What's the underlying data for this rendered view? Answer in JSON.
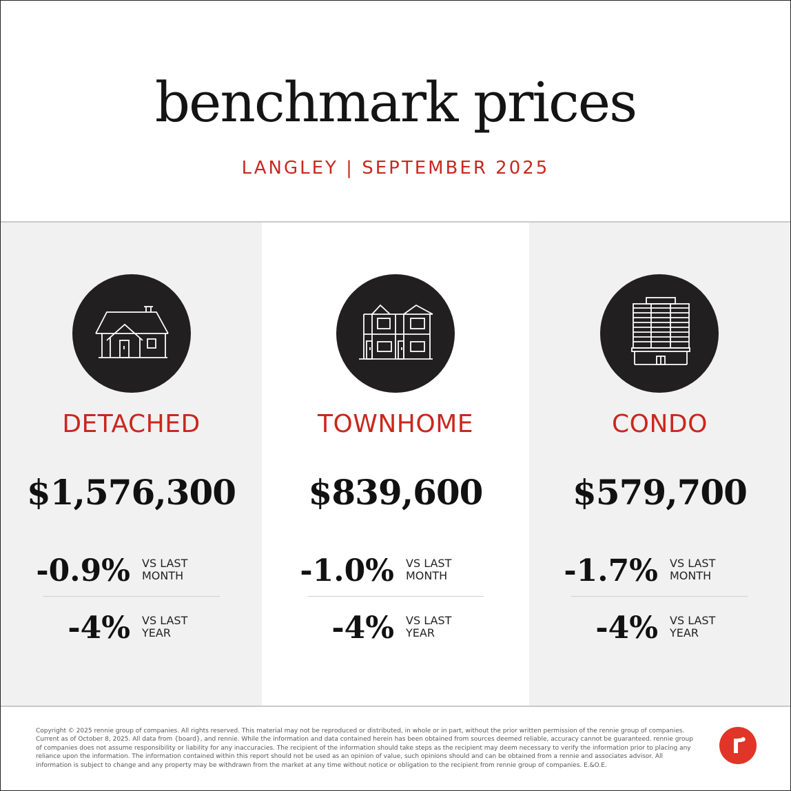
{
  "header": {
    "title": "benchmark prices",
    "subtitle": "LANGLEY | SEPTEMBER 2025"
  },
  "colors": {
    "accent": "#c8281e",
    "icon_circle": "#211f1f",
    "column_shade": "#f1f1f1",
    "logo": "#e03527"
  },
  "columns": [
    {
      "icon": "detached-house-icon",
      "type": "DETACHED",
      "price": "$1,576,300",
      "month_change": "-0.9%",
      "month_label_1": "VS LAST",
      "month_label_2": "MONTH",
      "year_change": "-4%",
      "year_label_1": "VS LAST",
      "year_label_2": "YEAR"
    },
    {
      "icon": "townhome-icon",
      "type": "TOWNHOME",
      "price": "$839,600",
      "month_change": "-1.0%",
      "month_label_1": "VS LAST",
      "month_label_2": "MONTH",
      "year_change": "-4%",
      "year_label_1": "VS LAST",
      "year_label_2": "YEAR"
    },
    {
      "icon": "condo-building-icon",
      "type": "CONDO",
      "price": "$579,700",
      "month_change": "-1.7%",
      "month_label_1": "VS LAST",
      "month_label_2": "MONTH",
      "year_change": "-4%",
      "year_label_1": "VS LAST",
      "year_label_2": "YEAR"
    }
  ],
  "footer": {
    "disclaimer": "Copyright © 2025 rennie group of companies. All rights reserved. This material may not be reproduced or distributed, in whole or in part, without the prior written permission of the rennie group of companies. Current as of October 8, 2025. All data from {board}, and rennie. While the information and data contained herein has been obtained from sources deemed reliable, accuracy cannot be guaranteed. rennie group of companies does not assume responsibility or liability for any inaccuracies. The recipient of the information should take steps as the recipient may deem necessary to verify the information prior to placing any reliance upon the information. The information contained within this report should not be used as an opinion of value, such opinions should and can be obtained from a rennie and associates advisor. All information is subject to change and any property may be withdrawn from the market at any time without notice or obligation to the recipient from rennie group of companies. E.&O.E.",
    "logo_icon": "rennie-logo-icon"
  }
}
